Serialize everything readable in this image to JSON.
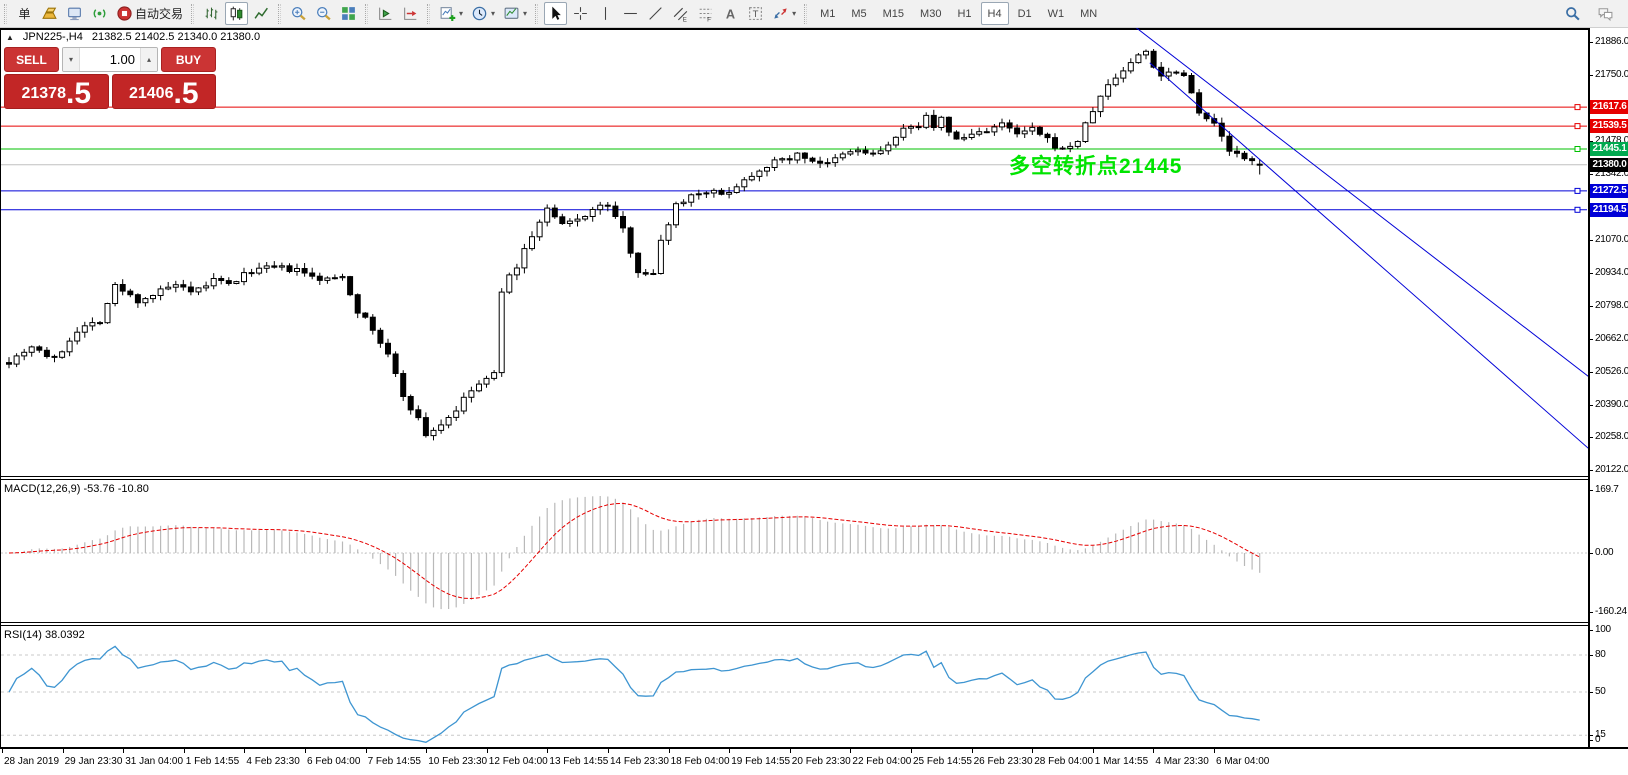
{
  "toolbar": {
    "groups": [
      [
        {
          "icon": "new-order-icon",
          "label": "单",
          "name": "new-order"
        },
        {
          "icon": "gold-bar-icon",
          "name": "deposit"
        },
        {
          "icon": "terminal-icon",
          "name": "terminal"
        },
        {
          "icon": "broadcast-icon",
          "name": "news"
        },
        {
          "icon": "autotrade-icon",
          "label": "自动交易",
          "name": "autotrading"
        }
      ],
      [
        {
          "icon": "bar-chart-icon",
          "name": "bar-chart-mode"
        },
        {
          "icon": "candlestick-icon",
          "name": "candlestick-mode",
          "selected": true
        },
        {
          "icon": "line-chart-icon",
          "name": "line-chart-mode"
        }
      ],
      [
        {
          "icon": "zoom-in-icon",
          "name": "zoom-in"
        },
        {
          "icon": "zoom-out-icon",
          "name": "zoom-out"
        },
        {
          "icon": "tile-windows-icon",
          "name": "tile-windows"
        }
      ],
      [
        {
          "icon": "auto-scroll-icon",
          "name": "auto-scroll"
        },
        {
          "icon": "chart-shift-icon",
          "name": "chart-shift"
        }
      ],
      [
        {
          "icon": "new-chart-icon",
          "name": "new-chart",
          "dropdown": true
        },
        {
          "icon": "clock-icon",
          "name": "periods",
          "dropdown": true
        },
        {
          "icon": "template-icon",
          "name": "templates",
          "dropdown": true
        }
      ],
      [
        {
          "icon": "cursor-icon",
          "name": "cursor",
          "selected": true
        },
        {
          "icon": "crosshair-icon",
          "name": "crosshair"
        },
        {
          "icon": "vertical-line-icon",
          "name": "vertical-line"
        },
        {
          "icon": "horizontal-line-icon",
          "name": "horizontal-line"
        },
        {
          "icon": "trendline-icon",
          "name": "trendline"
        },
        {
          "icon": "channel-icon",
          "name": "equidistant-channel"
        },
        {
          "icon": "fibonacci-icon",
          "name": "fibonacci-retracement"
        },
        {
          "icon": "text-icon",
          "name": "text-tool"
        },
        {
          "icon": "text-label-icon",
          "name": "text-label-tool"
        },
        {
          "icon": "arrows-icon",
          "name": "arrows-tool",
          "dropdown": true
        }
      ],
      [
        {
          "label": "M1",
          "name": "timeframe-m1"
        },
        {
          "label": "M5",
          "name": "timeframe-m5"
        },
        {
          "label": "M15",
          "name": "timeframe-m15"
        },
        {
          "label": "M30",
          "name": "timeframe-m30"
        },
        {
          "label": "H1",
          "name": "timeframe-h1"
        },
        {
          "label": "H4",
          "name": "timeframe-h4",
          "selected": true
        },
        {
          "label": "D1",
          "name": "timeframe-d1"
        },
        {
          "label": "W1",
          "name": "timeframe-w1"
        },
        {
          "label": "MN",
          "name": "timeframe-mn"
        }
      ]
    ],
    "right": [
      {
        "icon": "search-icon",
        "name": "search"
      },
      {
        "icon": "chat-icon",
        "name": "chat"
      }
    ]
  },
  "chart": {
    "title_symbol": "JPN225-,H4",
    "title_ohlc": "21382.5 21402.5 21340.0 21380.0",
    "annotation_text": "多空转折点21445",
    "annotation_color": "#00e400"
  },
  "trade_panel": {
    "sell_label": "SELL",
    "buy_label": "BUY",
    "volume": "1.00",
    "sell_price": "21378",
    "sell_price_big": ".5",
    "buy_price": "21406",
    "buy_price_big": ".5"
  },
  "indicators": {
    "macd_label": "MACD(12,26,9) -53.76 -10.80",
    "rsi_label": "RSI(14) 38.0392"
  },
  "chart_data": [
    {
      "type": "candlestick",
      "symbol": "JPN225-",
      "timeframe": "H4",
      "last_ohlc": {
        "open": 21382.5,
        "high": 21402.5,
        "low": 21340.0,
        "close": 21380.0
      },
      "ylim": [
        20122.0,
        21886.0
      ],
      "y_ticks": [
        21886.0,
        21750.0,
        21478.0,
        21342.0,
        21070.0,
        20934.0,
        20798.0,
        20662.0,
        20526.0,
        20390.0,
        20258.0,
        20122.0
      ],
      "x_labels": [
        "28 Jan 2019",
        "29 Jan 23:30",
        "31 Jan 04:00",
        "1 Feb 14:55",
        "4 Feb 23:30",
        "6 Feb 04:00",
        "7 Feb 14:55",
        "10 Feb 23:30",
        "12 Feb 04:00",
        "13 Feb 14:55",
        "14 Feb 23:30",
        "18 Feb 04:00",
        "19 Feb 14:55",
        "20 Feb 23:30",
        "22 Feb 04:00",
        "25 Feb 14:55",
        "26 Feb 23:30",
        "28 Feb 04:00",
        "1 Mar 14:55",
        "4 Mar 23:30",
        "6 Mar 04:00"
      ],
      "price_path": [
        [
          0,
          20570
        ],
        [
          3,
          20635
        ],
        [
          6,
          20575
        ],
        [
          9,
          20700
        ],
        [
          12,
          20740
        ],
        [
          14,
          20880
        ],
        [
          17,
          20820
        ],
        [
          19,
          20845
        ],
        [
          22,
          20885
        ],
        [
          24,
          20845
        ],
        [
          27,
          20905
        ],
        [
          29,
          20885
        ],
        [
          32,
          20945
        ],
        [
          35,
          20955
        ],
        [
          38,
          20945
        ],
        [
          40,
          20915
        ],
        [
          42,
          20905
        ],
        [
          44,
          20925
        ],
        [
          46,
          20780
        ],
        [
          48,
          20700
        ],
        [
          50,
          20595
        ],
        [
          52,
          20430
        ],
        [
          54,
          20330
        ],
        [
          55,
          20267
        ],
        [
          57,
          20310
        ],
        [
          59,
          20370
        ],
        [
          61,
          20450
        ],
        [
          62,
          20475
        ],
        [
          64,
          20515
        ],
        [
          65,
          20865
        ],
        [
          67,
          20965
        ],
        [
          69,
          21090
        ],
        [
          71,
          21195
        ],
        [
          73,
          21130
        ],
        [
          75,
          21155
        ],
        [
          77,
          21195
        ],
        [
          79,
          21215
        ],
        [
          81,
          21110
        ],
        [
          83,
          20945
        ],
        [
          85,
          20925
        ],
        [
          86,
          21070
        ],
        [
          88,
          21215
        ],
        [
          90,
          21255
        ],
        [
          92,
          21275
        ],
        [
          94,
          21255
        ],
        [
          96,
          21295
        ],
        [
          98,
          21340
        ],
        [
          100,
          21380
        ],
        [
          102,
          21400
        ],
        [
          104,
          21420
        ],
        [
          106,
          21400
        ],
        [
          108,
          21380
        ],
        [
          110,
          21420
        ],
        [
          112,
          21440
        ],
        [
          114,
          21420
        ],
        [
          116,
          21460
        ],
        [
          118,
          21520
        ],
        [
          120,
          21545
        ],
        [
          121,
          21590
        ],
        [
          122,
          21525
        ],
        [
          123,
          21565
        ],
        [
          125,
          21480
        ],
        [
          127,
          21505
        ],
        [
          129,
          21525
        ],
        [
          131,
          21545
        ],
        [
          133,
          21505
        ],
        [
          135,
          21525
        ],
        [
          137,
          21480
        ],
        [
          139,
          21440
        ],
        [
          141,
          21480
        ],
        [
          143,
          21605
        ],
        [
          145,
          21710
        ],
        [
          147,
          21770
        ],
        [
          149,
          21830
        ],
        [
          150,
          21850
        ],
        [
          151,
          21790
        ],
        [
          152,
          21750
        ],
        [
          154,
          21770
        ],
        [
          155,
          21750
        ],
        [
          157,
          21605
        ],
        [
          159,
          21545
        ],
        [
          161,
          21440
        ],
        [
          163,
          21400
        ],
        [
          165,
          21380
        ]
      ],
      "levels": [
        {
          "price": 21617.6,
          "color": "#e60000"
        },
        {
          "price": 21539.5,
          "color": "#e60000"
        },
        {
          "price": 21445.1,
          "color": "#00c000"
        },
        {
          "price": 21380.0,
          "color": "#c0c0c0",
          "role": "current-price"
        },
        {
          "price": 21272.5,
          "color": "#0000d7"
        },
        {
          "price": 21194.5,
          "color": "#0000d7"
        }
      ],
      "badges": [
        {
          "text": "21617.6",
          "bg": "#e60000"
        },
        {
          "text": "21539.5",
          "bg": "#e60000"
        },
        {
          "text": "21445.1",
          "bg": "#00a94f"
        },
        {
          "text": "21380.0",
          "bg": "#000000"
        },
        {
          "text": "21272.5",
          "bg": "#0000d7"
        },
        {
          "text": "21194.5",
          "bg": "#0000d7"
        }
      ],
      "trendlines": [
        {
          "from_bar": 148.5,
          "from_price": 21950,
          "to_bar": 209.5,
          "to_price": 20480,
          "color": "#0000d7"
        },
        {
          "from_bar": 150.5,
          "from_price": 21800,
          "to_bar": 209.5,
          "to_price": 20180,
          "color": "#0000d7"
        }
      ],
      "annotation": {
        "text": "多空转折点21445",
        "bar": 132,
        "price": 21400
      }
    },
    {
      "type": "macd",
      "label": "MACD(12,26,9) -53.76 -10.80",
      "params": [
        12,
        26,
        9
      ],
      "current_values": [
        -53.76,
        -10.8
      ],
      "ylim": [
        -160.24,
        169.7
      ],
      "y_ticks": [
        169.7,
        0.0,
        -160.24
      ]
    },
    {
      "type": "rsi",
      "label": "RSI(14) 38.0392",
      "period": 14,
      "current_value": 38.0392,
      "ylim": [
        0,
        100
      ],
      "y_ticks": [
        100,
        80,
        50,
        15,
        0
      ],
      "levels": [
        80,
        50,
        15
      ]
    }
  ]
}
